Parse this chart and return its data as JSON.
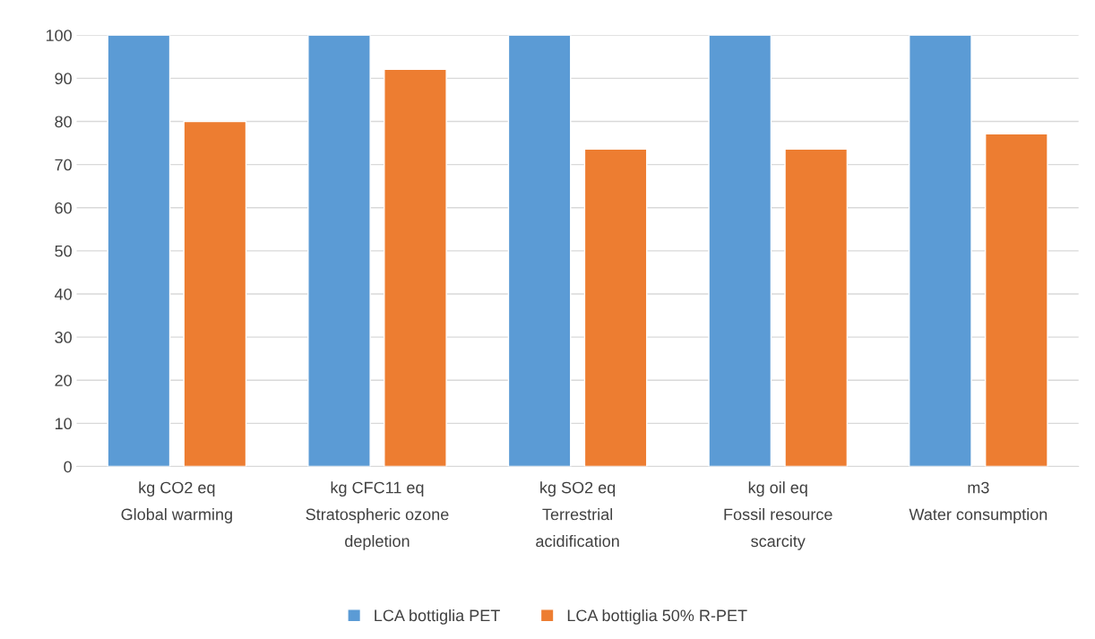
{
  "chart_data": {
    "type": "bar",
    "categories": [
      "kg CO2 eq\nGlobal warming",
      "kg CFC11 eq\nStratospheric ozone\ndepletion",
      "kg SO2 eq\nTerrestrial\nacidification",
      "kg oil eq\nFossil resource\nscarcity",
      "m3\nWater consumption"
    ],
    "series": [
      {
        "name": "LCA bottiglia PET",
        "color": "#5b9bd5",
        "values": [
          100,
          100,
          100,
          100,
          100
        ]
      },
      {
        "name": "LCA bottiglia 50% R-PET",
        "color": "#ed7d31",
        "values": [
          80.0,
          92.1,
          73.6,
          73.6,
          77.1
        ]
      }
    ],
    "ylim": [
      0,
      100
    ],
    "yticks": [
      0,
      10,
      20,
      30,
      40,
      50,
      60,
      70,
      80,
      90,
      100
    ],
    "grid": "y",
    "legend": "bottom"
  }
}
